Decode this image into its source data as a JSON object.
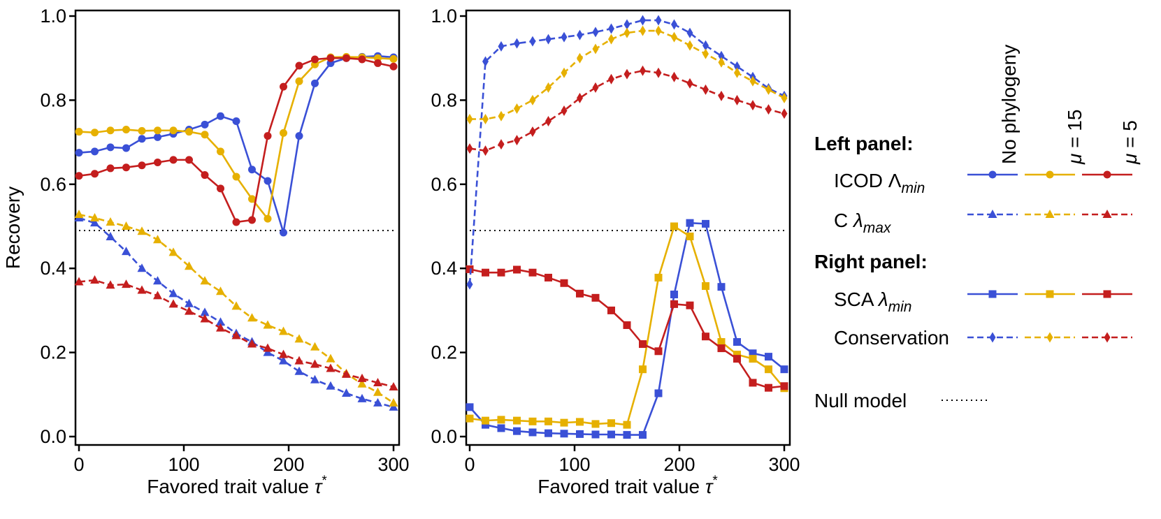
{
  "colors": {
    "no_phylogeny": "#3a50d6",
    "mu15": "#e6b000",
    "mu5": "#c41e1e",
    "null": "#000000"
  },
  "legend": {
    "columns": [
      "No phylogeny",
      "μ = 15",
      "μ = 5"
    ],
    "left_panel_header": "Left panel:",
    "right_panel_header": "Right panel:",
    "rows": {
      "icod": "ICOD Λ_min",
      "c": "C λ_max",
      "sca": "SCA λ_min",
      "conservation": "Conservation"
    },
    "null_model": "Null model"
  },
  "chart_data": [
    {
      "type": "line",
      "panel": "left",
      "xlabel": "Favored trait value τ*",
      "ylabel": "Recovery",
      "xlim": [
        0,
        300
      ],
      "ylim": [
        0,
        1
      ],
      "xticks": [
        0,
        100,
        200,
        300
      ],
      "yticks": [
        0.0,
        0.2,
        0.4,
        0.6,
        0.8,
        1.0
      ],
      "x": [
        0,
        15,
        30,
        45,
        60,
        75,
        90,
        105,
        120,
        135,
        150,
        165,
        180,
        195,
        210,
        225,
        240,
        255,
        270,
        285,
        300
      ],
      "null_value": 0.49,
      "series": [
        {
          "name": "ICOD Λ_min · No phylogeny",
          "color_key": "no_phylogeny",
          "style": "solid",
          "marker": "circle",
          "values": [
            0.675,
            0.678,
            0.688,
            0.686,
            0.708,
            0.712,
            0.72,
            0.73,
            0.742,
            0.762,
            0.75,
            0.635,
            0.608,
            0.485,
            0.715,
            0.84,
            0.888,
            0.9,
            0.903,
            0.905,
            0.902
          ]
        },
        {
          "name": "ICOD Λ_min · μ = 15",
          "color_key": "mu15",
          "style": "solid",
          "marker": "circle",
          "values": [
            0.725,
            0.723,
            0.728,
            0.73,
            0.727,
            0.728,
            0.728,
            0.725,
            0.718,
            0.678,
            0.618,
            0.565,
            0.518,
            0.722,
            0.845,
            0.885,
            0.902,
            0.903,
            0.902,
            0.9,
            0.898
          ]
        },
        {
          "name": "ICOD Λ_min · μ = 5",
          "color_key": "mu5",
          "style": "solid",
          "marker": "circle",
          "values": [
            0.62,
            0.625,
            0.638,
            0.64,
            0.645,
            0.652,
            0.658,
            0.658,
            0.622,
            0.59,
            0.51,
            0.515,
            0.715,
            0.832,
            0.882,
            0.897,
            0.9,
            0.9,
            0.897,
            0.888,
            0.88
          ]
        },
        {
          "name": "C λ_max · No phylogeny",
          "color_key": "no_phylogeny",
          "style": "dashed",
          "marker": "triangle",
          "values": [
            0.52,
            0.508,
            0.475,
            0.44,
            0.4,
            0.37,
            0.34,
            0.316,
            0.295,
            0.272,
            0.245,
            0.225,
            0.2,
            0.18,
            0.155,
            0.135,
            0.12,
            0.103,
            0.09,
            0.08,
            0.07
          ]
        },
        {
          "name": "C λ_max · μ = 15",
          "color_key": "mu15",
          "style": "dashed",
          "marker": "triangle",
          "values": [
            0.528,
            0.52,
            0.51,
            0.5,
            0.488,
            0.468,
            0.438,
            0.405,
            0.37,
            0.345,
            0.31,
            0.282,
            0.265,
            0.25,
            0.232,
            0.213,
            0.185,
            0.15,
            0.125,
            0.105,
            0.08
          ]
        },
        {
          "name": "C λ_max · μ = 5",
          "color_key": "mu5",
          "style": "dashed",
          "marker": "triangle",
          "values": [
            0.368,
            0.372,
            0.36,
            0.362,
            0.348,
            0.335,
            0.315,
            0.298,
            0.28,
            0.258,
            0.24,
            0.22,
            0.21,
            0.195,
            0.18,
            0.172,
            0.162,
            0.148,
            0.138,
            0.128,
            0.118
          ]
        }
      ]
    },
    {
      "type": "line",
      "panel": "right",
      "xlabel": "Favored trait value τ*",
      "ylabel": "",
      "xlim": [
        0,
        300
      ],
      "ylim": [
        0,
        1
      ],
      "xticks": [
        0,
        100,
        200,
        300
      ],
      "yticks": [
        0.0,
        0.2,
        0.4,
        0.6,
        0.8,
        1.0
      ],
      "x": [
        0,
        15,
        30,
        45,
        60,
        75,
        90,
        105,
        120,
        135,
        150,
        165,
        180,
        195,
        210,
        225,
        240,
        255,
        270,
        285,
        300
      ],
      "null_value": 0.49,
      "series": [
        {
          "name": "SCA λ_min · No phylogeny",
          "color_key": "no_phylogeny",
          "style": "solid",
          "marker": "square",
          "values": [
            0.07,
            0.028,
            0.02,
            0.013,
            0.01,
            0.008,
            0.007,
            0.006,
            0.005,
            0.005,
            0.004,
            0.004,
            0.103,
            0.338,
            0.508,
            0.506,
            0.356,
            0.225,
            0.198,
            0.19,
            0.16
          ]
        },
        {
          "name": "SCA λ_min · μ = 15",
          "color_key": "mu15",
          "style": "solid",
          "marker": "square",
          "values": [
            0.043,
            0.038,
            0.04,
            0.038,
            0.036,
            0.036,
            0.033,
            0.035,
            0.03,
            0.032,
            0.028,
            0.16,
            0.378,
            0.5,
            0.476,
            0.358,
            0.225,
            0.195,
            0.185,
            0.16,
            0.115
          ]
        },
        {
          "name": "SCA λ_min · μ = 5",
          "color_key": "mu5",
          "style": "solid",
          "marker": "square",
          "values": [
            0.398,
            0.39,
            0.39,
            0.397,
            0.39,
            0.378,
            0.365,
            0.34,
            0.33,
            0.3,
            0.265,
            0.22,
            0.203,
            0.315,
            0.312,
            0.238,
            0.21,
            0.185,
            0.128,
            0.116,
            0.12
          ]
        },
        {
          "name": "Conservation · No phylogeny",
          "color_key": "no_phylogeny",
          "style": "dashed",
          "marker": "diamond",
          "x": [
            0,
            15,
            30,
            45,
            60,
            75,
            90,
            105,
            120,
            135,
            150,
            165,
            180,
            195,
            210,
            225,
            240,
            255,
            270,
            285,
            300
          ],
          "values": [
            0.362,
            0.892,
            0.928,
            0.935,
            0.94,
            0.945,
            0.95,
            0.955,
            0.962,
            0.97,
            0.98,
            0.99,
            0.99,
            0.98,
            0.96,
            0.93,
            0.905,
            0.88,
            0.855,
            0.828,
            0.81
          ]
        },
        {
          "name": "Conservation · μ = 15",
          "color_key": "mu15",
          "style": "dashed",
          "marker": "diamond",
          "values": [
            0.755,
            0.755,
            0.762,
            0.78,
            0.8,
            0.83,
            0.865,
            0.9,
            0.922,
            0.945,
            0.96,
            0.965,
            0.965,
            0.95,
            0.93,
            0.91,
            0.89,
            0.865,
            0.845,
            0.825,
            0.805
          ]
        },
        {
          "name": "Conservation · μ = 5",
          "color_key": "mu5",
          "style": "dashed",
          "marker": "diamond",
          "values": [
            0.685,
            0.68,
            0.695,
            0.705,
            0.725,
            0.75,
            0.775,
            0.805,
            0.83,
            0.85,
            0.862,
            0.87,
            0.865,
            0.855,
            0.84,
            0.825,
            0.81,
            0.8,
            0.788,
            0.778,
            0.768
          ]
        }
      ]
    }
  ]
}
